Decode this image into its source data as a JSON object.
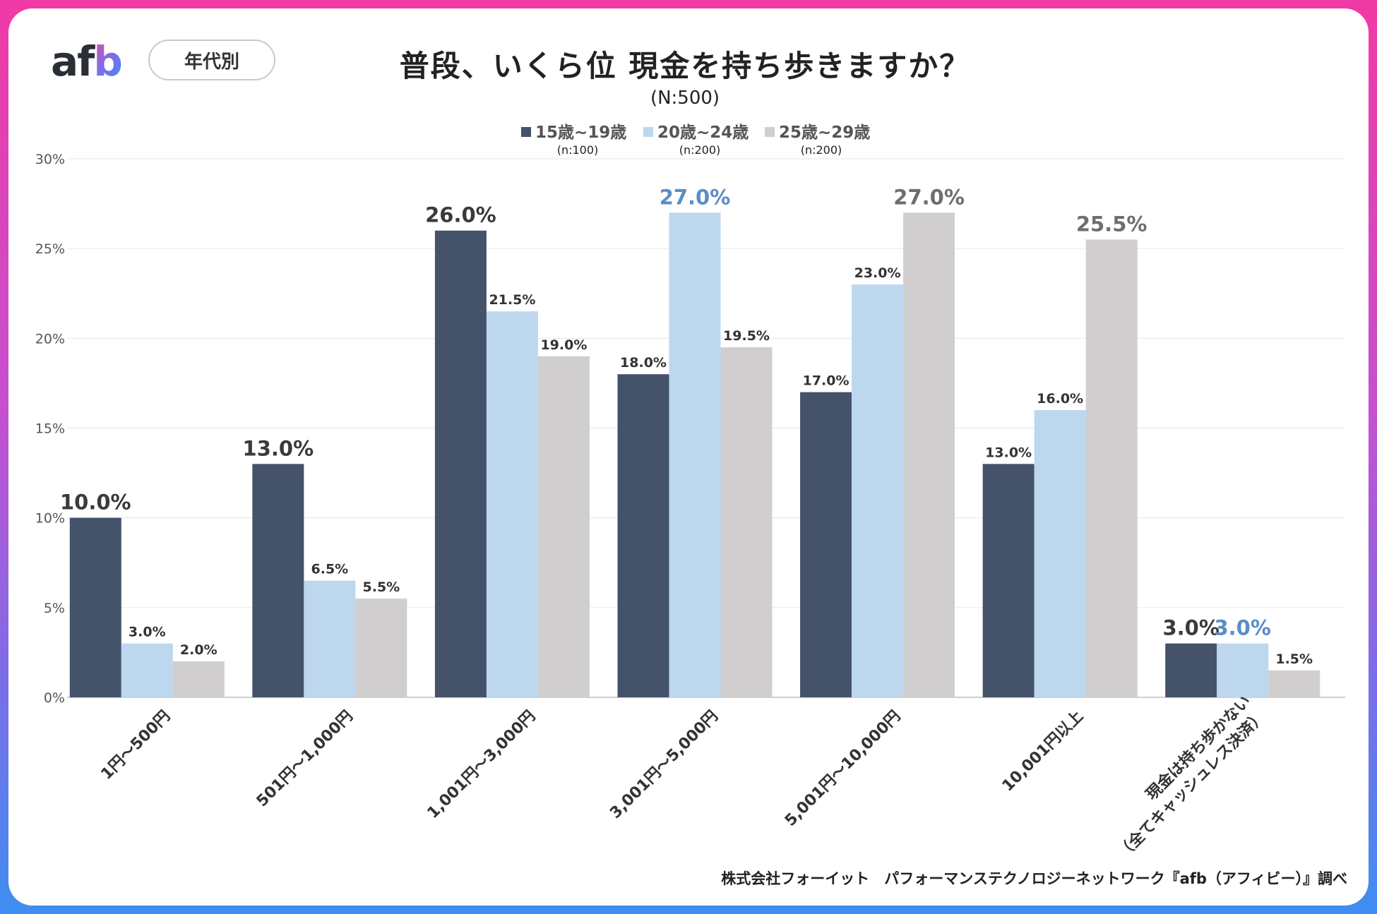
{
  "brand": {
    "logo_main": "af",
    "logo_accent": "b"
  },
  "tag_label": "年代別",
  "chart_data": {
    "type": "bar",
    "title": "普段、いくら位 現金を持ち歩きますか？",
    "subtitle": "(N:500)",
    "categories": [
      "1円～500円",
      "501円～1,000円",
      "1,001円～3,000円",
      "3,001円～5,000円",
      "5,001円～10,000円",
      "10,001円以上",
      "現金は持ち歩かない（全てキャッシュレス決済）"
    ],
    "category_lines": [
      [
        "1円～500円"
      ],
      [
        "501円～1,000円"
      ],
      [
        "1,001円～3,000円"
      ],
      [
        "3,001円～5,000円"
      ],
      [
        "5,001円～10,000円"
      ],
      [
        "10,001円以上"
      ],
      [
        "現金は持ち歩かない",
        "（全てキャッシュレス決済）"
      ]
    ],
    "series": [
      {
        "name": "15歳~19歳",
        "sample": "(n:100)",
        "color": "#44536a",
        "values": [
          10.0,
          13.0,
          26.0,
          18.0,
          17.0,
          13.0,
          3.0
        ]
      },
      {
        "name": "20歳~24歳",
        "sample": "(n:200)",
        "color": "#bdd7ee",
        "values": [
          3.0,
          6.5,
          21.5,
          27.0,
          23.0,
          16.0,
          3.0
        ]
      },
      {
        "name": "25歳~29歳",
        "sample": "(n:200)",
        "color": "#d0cece",
        "values": [
          2.0,
          5.5,
          19.0,
          19.5,
          27.0,
          25.5,
          1.5
        ]
      }
    ],
    "highlight_label_colors": [
      "#3a3a3a",
      "#5b8ec4",
      "#6e6e6e"
    ],
    "ylim": [
      0,
      30
    ],
    "yticks": [
      "0%",
      "5%",
      "10%",
      "15%",
      "20%",
      "25%",
      "30%"
    ],
    "ytick_values": [
      0,
      5,
      10,
      15,
      20,
      25,
      30
    ],
    "grid": true,
    "legend_position": "top-center",
    "value_suffix": "%"
  },
  "footer": "株式会社フォーイット　パフォーマンステクノロジーネットワーク『afb（アフィビー）』調べ"
}
